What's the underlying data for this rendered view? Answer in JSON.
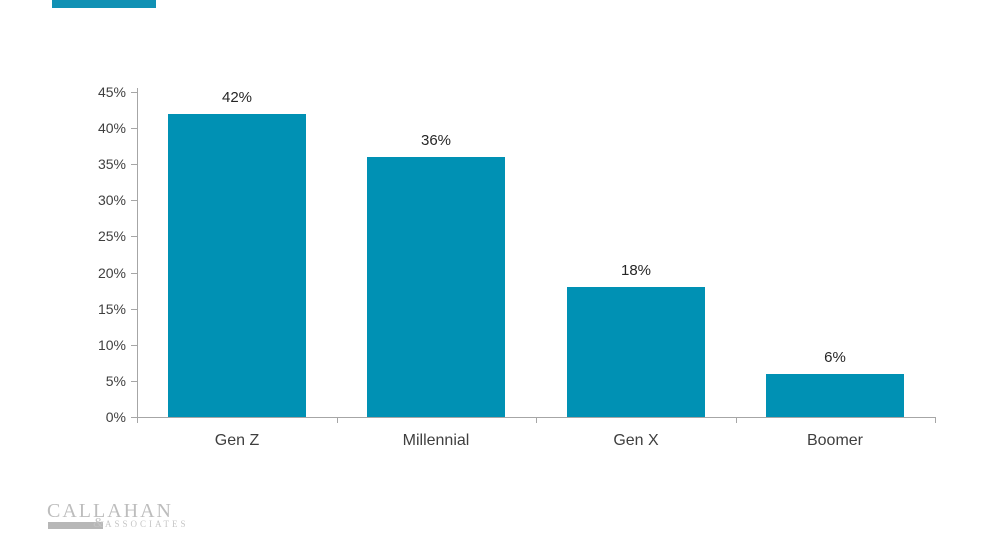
{
  "accent_bar_color": "#1191b4",
  "chart_data": {
    "type": "bar",
    "title": "",
    "categories": [
      "Gen Z",
      "Millennial",
      "Gen X",
      "Boomer"
    ],
    "values": [
      42,
      36,
      18,
      6
    ],
    "data_labels": [
      "42%",
      "36%",
      "18%",
      "6%"
    ],
    "y_tick_labels": [
      "0%",
      "5%",
      "10%",
      "15%",
      "20%",
      "25%",
      "30%",
      "35%",
      "40%",
      "45%"
    ],
    "ylim": [
      0,
      45
    ],
    "y_step": 5,
    "grid": false,
    "legend": "none",
    "bar_color": "#0091b4",
    "axis_color": "#a6a6a6",
    "value_label_color": "#262626",
    "tick_label_color": "#3f3f3f"
  },
  "footer": {
    "logo_primary": "CALLAHAN",
    "logo_ampersand": "&",
    "logo_secondary": "ASSOCIATES"
  }
}
